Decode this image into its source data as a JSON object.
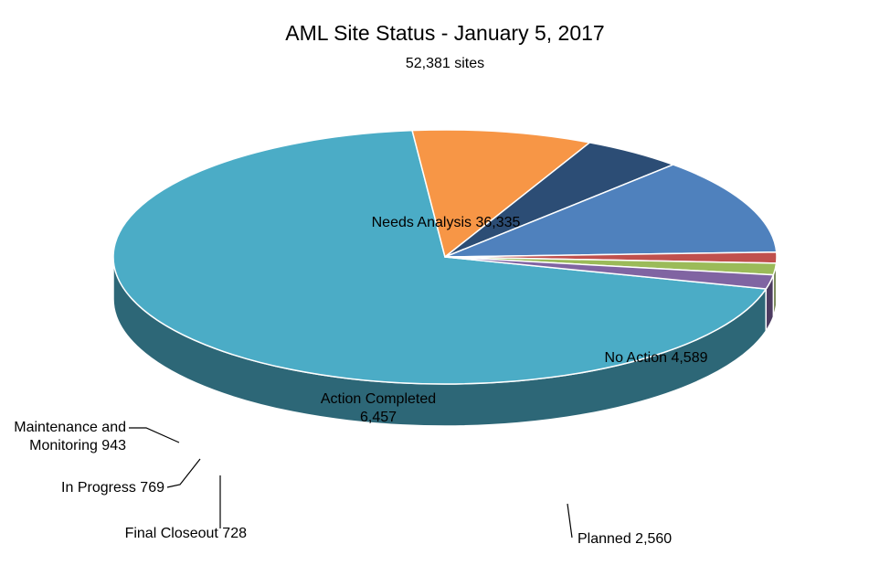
{
  "chart_data": {
    "type": "pie",
    "style": "3d",
    "title": "AML Site Status - January 5, 2017",
    "subtitle": "52,381 sites",
    "total": 52381,
    "slices": [
      {
        "name": "Needs Analysis",
        "value": 36335,
        "color": "#4BACC6",
        "label_lines": [
          "Needs Analysis 36,335"
        ]
      },
      {
        "name": "No Action",
        "value": 4589,
        "color": "#F79646",
        "label_lines": [
          "No Action 4,589"
        ]
      },
      {
        "name": "Planned",
        "value": 2560,
        "color": "#2C4D75",
        "label_lines": [
          "Planned 2,560"
        ]
      },
      {
        "name": "Action Completed",
        "value": 6457,
        "color": "#4F81BD",
        "label_lines": [
          "Action Completed",
          "6,457"
        ]
      },
      {
        "name": "Final Closeout",
        "value": 728,
        "color": "#C0504D",
        "label_lines": [
          "Final Closeout 728"
        ]
      },
      {
        "name": "In Progress",
        "value": 769,
        "color": "#9BBB59",
        "label_lines": [
          "In Progress 769"
        ]
      },
      {
        "name": "Maintenance and Monitoring",
        "value": 943,
        "color": "#8064A2",
        "label_lines": [
          "Maintenance and",
          "Monitoring 943"
        ]
      }
    ],
    "legend": "none"
  }
}
